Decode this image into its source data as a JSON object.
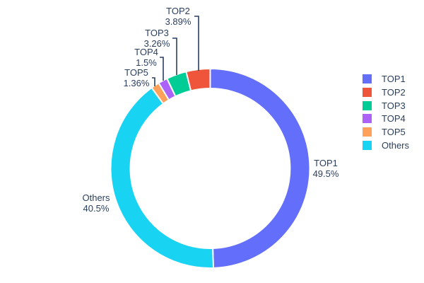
{
  "chart_data": {
    "type": "pie",
    "subtype": "donut",
    "hole_ratio": 0.8,
    "title": "",
    "labels": [
      "TOP1",
      "TOP2",
      "TOP3",
      "TOP4",
      "TOP5",
      "Others"
    ],
    "values": [
      49.5,
      3.89,
      3.26,
      1.5,
      1.36,
      40.5
    ],
    "percent_labels": [
      "49.5%",
      "3.89%",
      "3.26%",
      "1.5%",
      "1.36%",
      "40.5%"
    ],
    "colors": [
      "#636EFA",
      "#EF553B",
      "#00CC96",
      "#AB63FA",
      "#FFA15A",
      "#19D3F3"
    ],
    "draw_order_clockwise_from_top": [
      "TOP1",
      "Others",
      "TOP5",
      "TOP4",
      "TOP3",
      "TOP2"
    ],
    "label_placement": "outside-with-leader-lines",
    "legend": {
      "position": "right",
      "entries": [
        "TOP1",
        "TOP2",
        "TOP3",
        "TOP4",
        "TOP5",
        "Others"
      ]
    },
    "text_color": "#2a3f5f",
    "background_color": "#ffffff",
    "slice_gap_color": "#ffffff"
  }
}
